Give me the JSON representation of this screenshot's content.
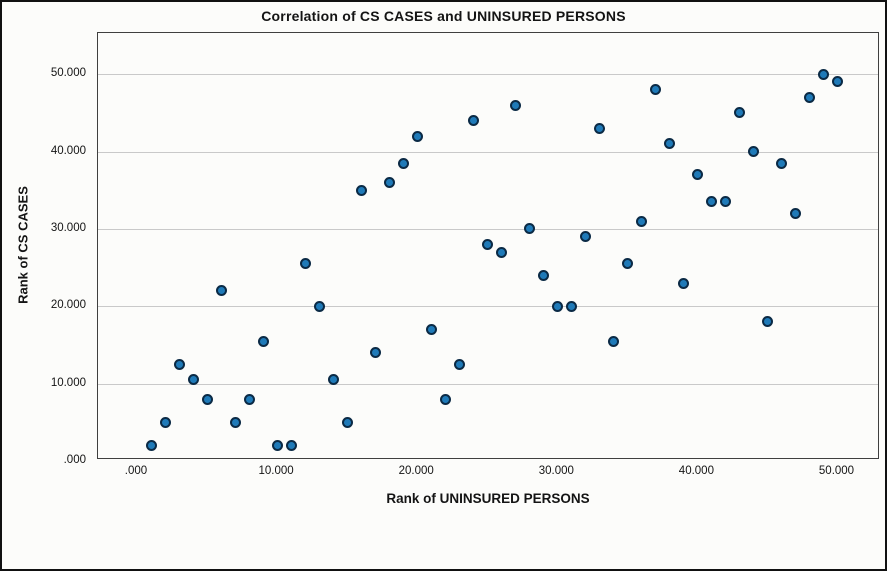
{
  "chart_data": {
    "type": "scatter",
    "title": "Correlation of CS CASES and UNINSURED PERSONS",
    "xlabel": "Rank of UNINSURED PERSONS",
    "ylabel": "Rank of CS CASES",
    "x_tick_labels": [
      ".000",
      "10.000",
      "20.000",
      "30.000",
      "40.000",
      "50.000"
    ],
    "x_tick_values": [
      0,
      10,
      20,
      30,
      40,
      50
    ],
    "y_tick_labels": [
      ".000",
      "10.000",
      "20.000",
      "30.000",
      "40.000",
      "50.000"
    ],
    "y_tick_values": [
      0,
      10,
      20,
      30,
      40,
      50
    ],
    "xlim": [
      -2.8,
      53
    ],
    "ylim": [
      -0.2,
      55.3
    ],
    "grid": "horizontal-only",
    "legend": "none",
    "marker_style": "filled-circle",
    "points": [
      [
        1,
        2
      ],
      [
        2,
        5
      ],
      [
        3,
        12.5
      ],
      [
        4,
        10.5
      ],
      [
        5,
        8
      ],
      [
        6,
        22
      ],
      [
        7,
        5
      ],
      [
        8,
        8
      ],
      [
        9,
        15.5
      ],
      [
        10,
        2
      ],
      [
        11,
        2
      ],
      [
        12,
        25.5
      ],
      [
        13,
        20
      ],
      [
        14,
        10.5
      ],
      [
        15,
        5
      ],
      [
        16,
        35
      ],
      [
        17,
        14
      ],
      [
        18,
        36
      ],
      [
        19,
        38.5
      ],
      [
        20,
        42
      ],
      [
        21,
        17
      ],
      [
        22,
        8
      ],
      [
        23,
        12.5
      ],
      [
        24,
        44
      ],
      [
        25,
        28
      ],
      [
        26,
        27
      ],
      [
        27,
        46
      ],
      [
        28,
        30
      ],
      [
        29,
        24
      ],
      [
        30,
        20
      ],
      [
        31,
        20
      ],
      [
        32,
        29
      ],
      [
        33,
        43
      ],
      [
        34,
        15.5
      ],
      [
        35,
        25.5
      ],
      [
        36,
        31
      ],
      [
        37,
        48
      ],
      [
        38,
        41
      ],
      [
        39,
        23
      ],
      [
        40,
        37
      ],
      [
        41,
        33.5
      ],
      [
        42,
        33.5
      ],
      [
        43,
        45
      ],
      [
        44,
        40
      ],
      [
        45,
        18
      ],
      [
        46,
        38.5
      ],
      [
        47,
        32
      ],
      [
        48,
        47
      ],
      [
        49,
        50
      ],
      [
        50,
        49
      ]
    ]
  },
  "colors": {
    "marker_fill": "#1f7ab8",
    "marker_stroke": "#0b2a45",
    "gridline": "#c9c9c9",
    "plot_frame": "#3f3f3f",
    "outer_border": "#111111",
    "background": "#fcfcfa",
    "text": "#141414"
  }
}
